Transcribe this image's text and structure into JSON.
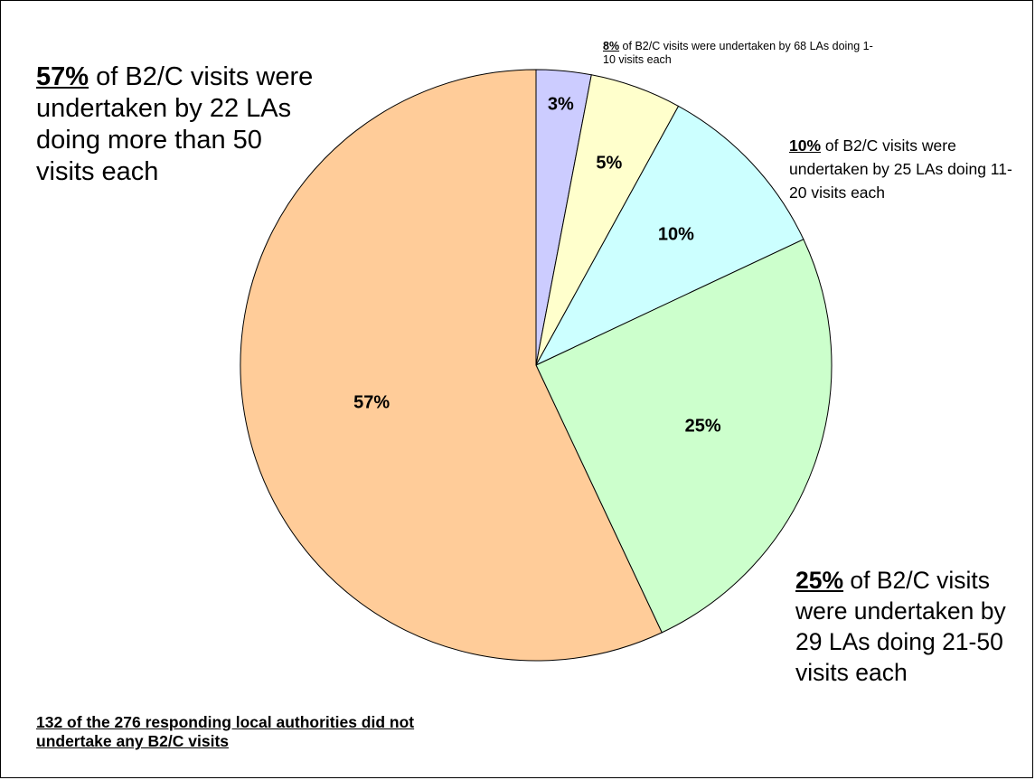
{
  "chart_data": {
    "type": "pie",
    "slices": [
      {
        "label": "3%",
        "value": 3,
        "color": "#CCCCFF"
      },
      {
        "label": "5%",
        "value": 5,
        "color": "#FFFFCC"
      },
      {
        "label": "10%",
        "value": 10,
        "color": "#CCFFFF"
      },
      {
        "label": "25%",
        "value": 25,
        "color": "#CCFFCC"
      },
      {
        "label": "57%",
        "value": 57,
        "color": "#FFCC99"
      }
    ],
    "annotations": {
      "a57": {
        "pct": "57%",
        "text": " of B2/C visits were undertaken by 22 LAs doing more than 50 visits each"
      },
      "a8": {
        "pct": "8%",
        "text": " of B2/C visits were undertaken by 68 LAs doing 1-10 visits each"
      },
      "a10": {
        "pct": "10%",
        "text": " of B2/C visits were undertaken by 25 LAs doing 11-20 visits each"
      },
      "a25": {
        "pct": "25%",
        "text": " of B2/C visits were undertaken by 29 LAs doing 21-50 visits each"
      }
    },
    "footnote": "132 of the 276 responding local authorities did not undertake any B2/C visits"
  }
}
